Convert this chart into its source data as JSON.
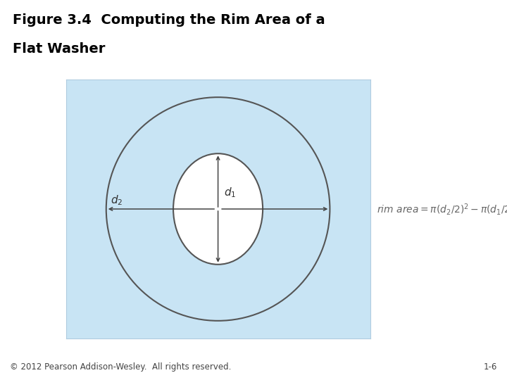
{
  "title_line1": "Figure 3.4  Computing the Rim Area of a",
  "title_line2": "Flat Washer",
  "title_fontsize": 14,
  "title_color": "#000000",
  "header_bg": "#8a9e82",
  "body_bg": "#ffffff",
  "diagram_bg": "#c8e4f4",
  "diagram_border": "#b0cce0",
  "ellipse_edge_color": "#555555",
  "ellipse_lw": 1.5,
  "arrow_color": "#444444",
  "label_fontsize": 11,
  "formula_fontsize": 10,
  "footer_text": "© 2012 Pearson Addison-Wesley.  All rights reserved.",
  "footer_right": "1-6",
  "footer_fontsize": 8.5
}
